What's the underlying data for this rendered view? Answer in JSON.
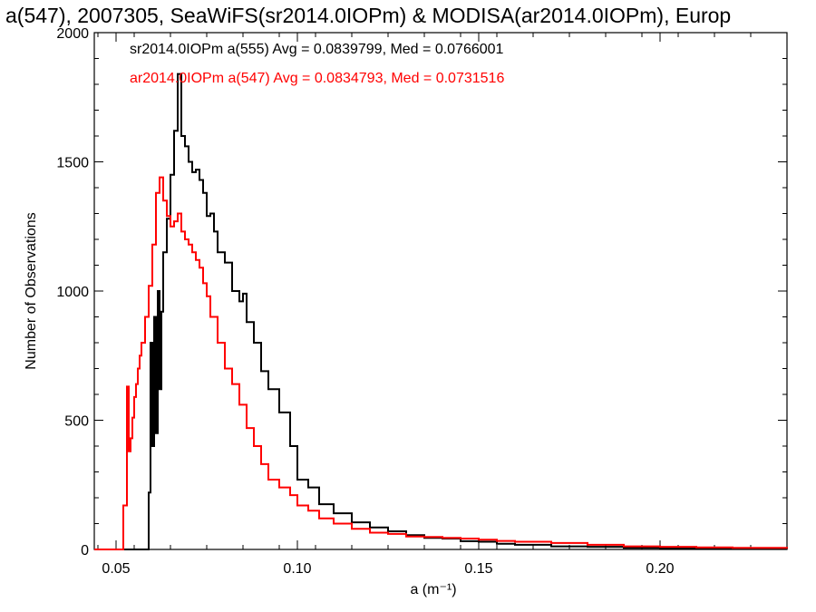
{
  "chart_data": {
    "type": "line",
    "title": "a(547), 2007305, SeaWiFS(sr2014.0IOPm) & MODISA(ar2014.0IOPm), Europ",
    "xlabel": "a (m⁻¹)",
    "ylabel": "Number of Observations",
    "xlim": [
      0.044,
      0.235
    ],
    "ylim": [
      0,
      2000
    ],
    "xticks": [
      0.05,
      0.1,
      0.15,
      0.2
    ],
    "xtick_labels": [
      "0.05",
      "0.10",
      "0.15",
      "0.20"
    ],
    "yticks": [
      0,
      500,
      1000,
      1500,
      2000
    ],
    "ytick_labels": [
      "0",
      "500",
      "1000",
      "1500",
      "2000"
    ],
    "grid": false,
    "legend": "top-left",
    "series": [
      {
        "name": "sr2014.0IOPm a(555) Avg = 0.0839799, Med = 0.0766001",
        "color": "#000000",
        "x": [
          0.044,
          0.0585,
          0.059,
          0.0595,
          0.06,
          0.0605,
          0.061,
          0.0615,
          0.062,
          0.0625,
          0.063,
          0.064,
          0.065,
          0.066,
          0.067,
          0.068,
          0.069,
          0.07,
          0.071,
          0.072,
          0.073,
          0.074,
          0.075,
          0.076,
          0.077,
          0.078,
          0.08,
          0.082,
          0.084,
          0.085,
          0.086,
          0.088,
          0.09,
          0.092,
          0.095,
          0.098,
          0.1,
          0.103,
          0.106,
          0.11,
          0.115,
          0.12,
          0.125,
          0.13,
          0.135,
          0.14,
          0.145,
          0.15,
          0.155,
          0.16,
          0.17,
          0.18,
          0.19,
          0.2,
          0.21,
          0.22,
          0.235
        ],
        "values": [
          0,
          0,
          220,
          800,
          400,
          900,
          450,
          1000,
          620,
          920,
          1150,
          1280,
          1450,
          1620,
          1840,
          1600,
          1560,
          1500,
          1460,
          1470,
          1430,
          1380,
          1290,
          1300,
          1230,
          1150,
          1110,
          1000,
          960,
          990,
          880,
          800,
          690,
          620,
          530,
          400,
          270,
          240,
          175,
          140,
          105,
          85,
          70,
          55,
          45,
          42,
          32,
          30,
          22,
          18,
          12,
          10,
          6,
          5,
          4,
          3,
          2
        ]
      },
      {
        "name": "ar2014.0IOPm a(547) Avg = 0.0834793, Med = 0.0731516",
        "color": "#ff0000",
        "x": [
          0.044,
          0.0515,
          0.052,
          0.053,
          0.0535,
          0.054,
          0.0545,
          0.055,
          0.0555,
          0.056,
          0.0565,
          0.057,
          0.058,
          0.059,
          0.06,
          0.061,
          0.062,
          0.063,
          0.064,
          0.065,
          0.066,
          0.067,
          0.068,
          0.069,
          0.07,
          0.071,
          0.072,
          0.073,
          0.074,
          0.075,
          0.076,
          0.078,
          0.08,
          0.082,
          0.084,
          0.086,
          0.088,
          0.09,
          0.092,
          0.095,
          0.098,
          0.1,
          0.103,
          0.106,
          0.11,
          0.115,
          0.12,
          0.125,
          0.13,
          0.135,
          0.14,
          0.145,
          0.15,
          0.155,
          0.16,
          0.17,
          0.18,
          0.19,
          0.2,
          0.21,
          0.22,
          0.235
        ],
        "values": [
          0,
          0,
          170,
          630,
          380,
          430,
          510,
          590,
          640,
          700,
          750,
          800,
          900,
          1020,
          1180,
          1380,
          1440,
          1350,
          1290,
          1250,
          1270,
          1300,
          1230,
          1200,
          1180,
          1150,
          1120,
          1090,
          1030,
          980,
          900,
          800,
          700,
          640,
          560,
          470,
          400,
          330,
          270,
          240,
          210,
          170,
          150,
          120,
          100,
          80,
          65,
          60,
          50,
          48,
          45,
          42,
          38,
          33,
          30,
          25,
          18,
          12,
          10,
          8,
          6,
          4
        ]
      }
    ]
  }
}
